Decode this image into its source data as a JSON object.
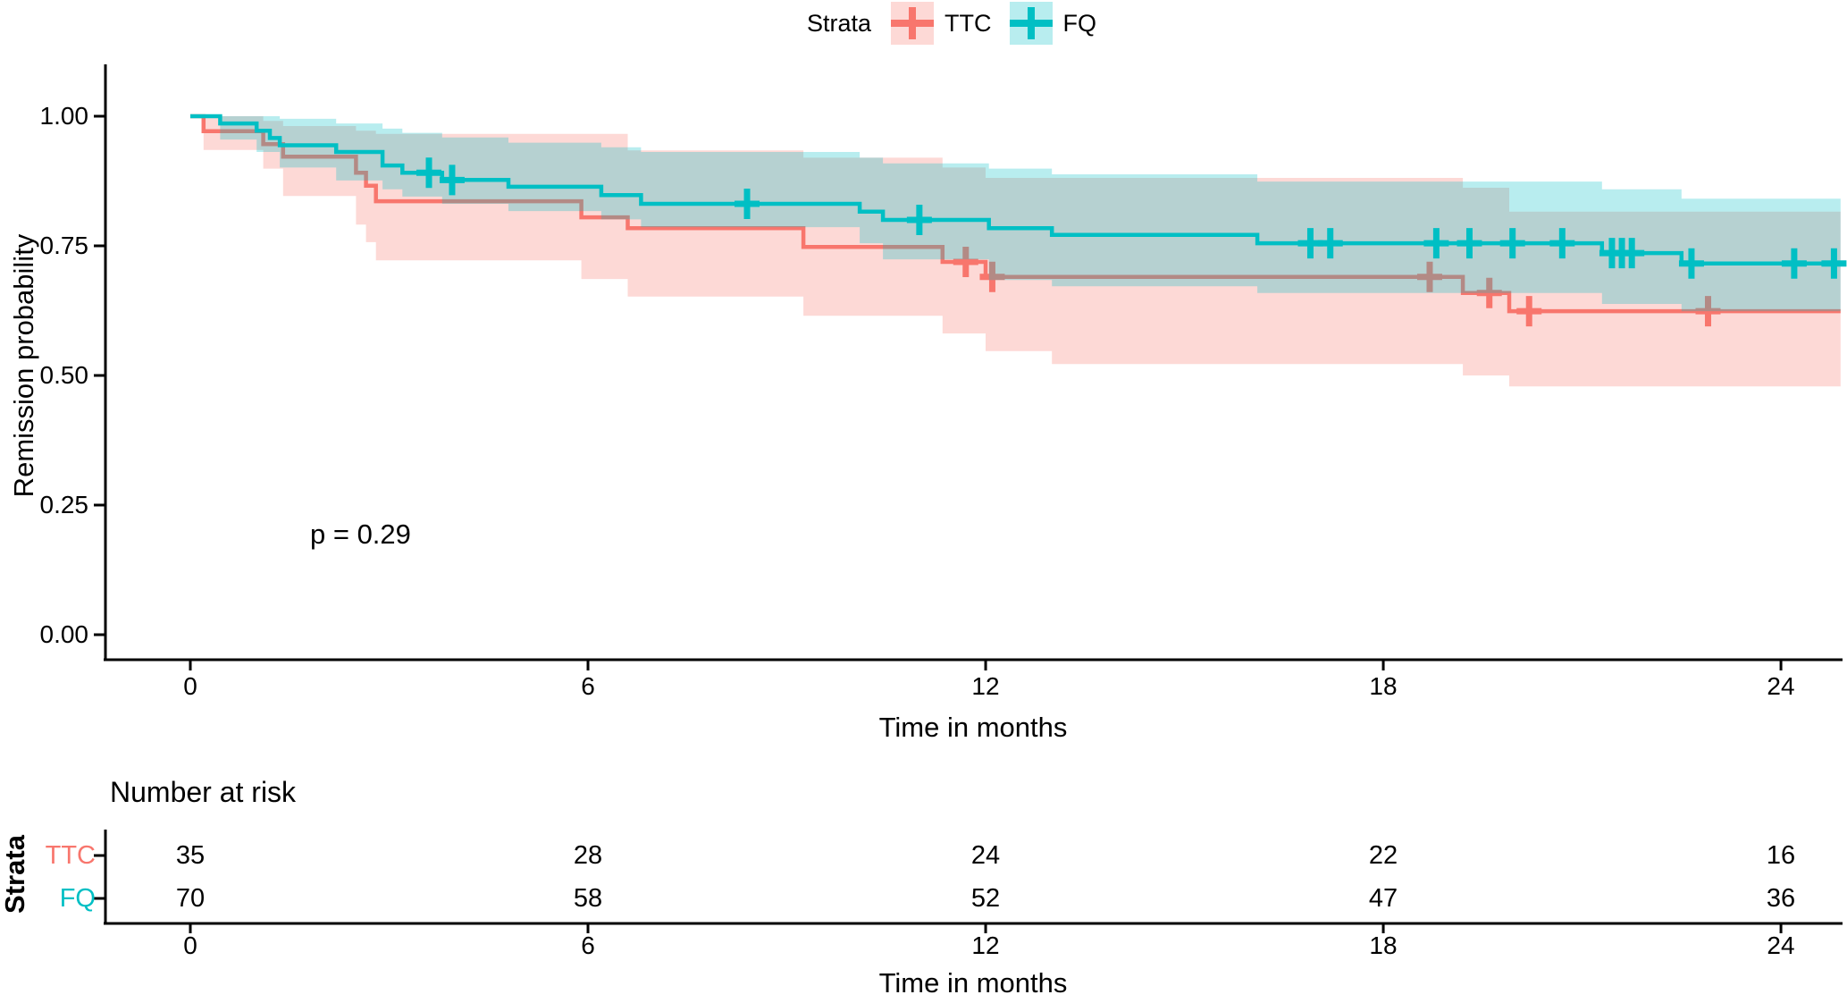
{
  "colors": {
    "ttc": "#F8766D",
    "fq": "#00BFC4",
    "ttc_band": "rgba(248,118,109,0.28)",
    "fq_band": "rgba(0,191,196,0.28)",
    "axis": "#000000",
    "text": "#000000"
  },
  "chart_data": {
    "type": "line",
    "subtype": "kaplan-meier-survival",
    "title": "",
    "xlabel": "Time in months",
    "ylabel": "Remission probability",
    "pvalue_annotation": "p = 0.29",
    "xlim": [
      0,
      24.9
    ],
    "ylim": [
      0,
      1.0
    ],
    "grid": false,
    "x_ticks": [
      0,
      6,
      12,
      18,
      24
    ],
    "x_tick_labels": [
      "0",
      "6",
      "12",
      "18",
      "24"
    ],
    "y_ticks": [
      1.0,
      0.75,
      0.5,
      0.25,
      0.0
    ],
    "y_tick_labels": [
      "1.00",
      "0.75",
      "0.50",
      "0.25",
      "0.00"
    ],
    "legend": {
      "title": "Strata",
      "position": "top",
      "items": [
        {
          "label": "TTC",
          "color": "#F8766D"
        },
        {
          "label": "FQ",
          "color": "#00BFC4"
        }
      ]
    },
    "series": [
      {
        "name": "TTC",
        "color": "#F8766D",
        "band_color": "rgba(248,118,109,0.28)",
        "steps": [
          [
            0,
            1.0
          ],
          [
            0.2,
            0.971
          ],
          [
            1.1,
            0.946
          ],
          [
            1.4,
            0.922
          ],
          [
            2.5,
            0.891
          ],
          [
            2.65,
            0.866
          ],
          [
            2.8,
            0.836
          ],
          [
            5.9,
            0.805
          ],
          [
            6.6,
            0.784
          ],
          [
            9.25,
            0.748
          ],
          [
            11.35,
            0.719
          ],
          [
            12.0,
            0.69
          ],
          [
            19.2,
            0.659
          ],
          [
            19.9,
            0.624
          ]
        ],
        "censors": [
          [
            11.7,
            0.719
          ],
          [
            12.1,
            0.69
          ],
          [
            18.7,
            0.69
          ],
          [
            19.6,
            0.659
          ],
          [
            20.2,
            0.624
          ],
          [
            22.9,
            0.624
          ]
        ],
        "band_upper": [
          [
            0.2,
            1.0
          ],
          [
            1.1,
            0.991
          ],
          [
            1.4,
            0.981
          ],
          [
            2.5,
            0.972
          ],
          [
            2.8,
            0.966
          ],
          [
            6.6,
            0.934
          ],
          [
            9.25,
            0.92
          ],
          [
            11.35,
            0.901
          ],
          [
            12.0,
            0.881
          ],
          [
            19.2,
            0.862
          ],
          [
            19.9,
            0.816
          ]
        ],
        "band_lower": [
          [
            0.2,
            0.935
          ],
          [
            1.1,
            0.899
          ],
          [
            1.4,
            0.846
          ],
          [
            2.5,
            0.791
          ],
          [
            2.65,
            0.757
          ],
          [
            2.8,
            0.722
          ],
          [
            5.9,
            0.686
          ],
          [
            6.6,
            0.652
          ],
          [
            9.25,
            0.615
          ],
          [
            11.35,
            0.581
          ],
          [
            12.0,
            0.547
          ],
          [
            13.0,
            0.522
          ],
          [
            19.2,
            0.5
          ],
          [
            19.9,
            0.479
          ]
        ]
      },
      {
        "name": "FQ",
        "color": "#00BFC4",
        "band_color": "rgba(0,191,196,0.28)",
        "steps": [
          [
            0,
            1.0
          ],
          [
            0.45,
            0.986
          ],
          [
            1.0,
            0.972
          ],
          [
            1.2,
            0.958
          ],
          [
            1.35,
            0.944
          ],
          [
            2.2,
            0.931
          ],
          [
            2.9,
            0.905
          ],
          [
            3.2,
            0.891
          ],
          [
            3.8,
            0.877
          ],
          [
            4.8,
            0.864
          ],
          [
            6.2,
            0.848
          ],
          [
            6.8,
            0.831
          ],
          [
            10.1,
            0.816
          ],
          [
            10.45,
            0.8
          ],
          [
            12.05,
            0.784
          ],
          [
            13.0,
            0.771
          ],
          [
            16.1,
            0.755
          ],
          [
            21.3,
            0.736
          ],
          [
            22.5,
            0.716
          ]
        ],
        "censors": [
          [
            3.6,
            0.891
          ],
          [
            3.95,
            0.877
          ],
          [
            8.4,
            0.831
          ],
          [
            11.0,
            0.8
          ],
          [
            16.9,
            0.755
          ],
          [
            17.2,
            0.755
          ],
          [
            18.8,
            0.755
          ],
          [
            19.3,
            0.755
          ],
          [
            19.95,
            0.755
          ],
          [
            20.7,
            0.755
          ],
          [
            21.45,
            0.736
          ],
          [
            21.6,
            0.736
          ],
          [
            21.75,
            0.736
          ],
          [
            22.65,
            0.716
          ],
          [
            24.2,
            0.716
          ],
          [
            24.8,
            0.716
          ]
        ],
        "band_upper": [
          [
            0.45,
            1.0
          ],
          [
            1.35,
            0.995
          ],
          [
            2.2,
            0.986
          ],
          [
            2.9,
            0.976
          ],
          [
            3.2,
            0.968
          ],
          [
            3.8,
            0.959
          ],
          [
            4.8,
            0.949
          ],
          [
            6.2,
            0.94
          ],
          [
            6.8,
            0.931
          ],
          [
            10.1,
            0.92
          ],
          [
            10.45,
            0.909
          ],
          [
            12.05,
            0.899
          ],
          [
            13.0,
            0.888
          ],
          [
            16.1,
            0.874
          ],
          [
            21.3,
            0.859
          ],
          [
            22.5,
            0.841
          ]
        ],
        "band_lower": [
          [
            0.45,
            0.955
          ],
          [
            1.0,
            0.931
          ],
          [
            1.35,
            0.901
          ],
          [
            2.2,
            0.876
          ],
          [
            2.9,
            0.859
          ],
          [
            3.2,
            0.845
          ],
          [
            3.8,
            0.831
          ],
          [
            4.8,
            0.817
          ],
          [
            6.2,
            0.801
          ],
          [
            6.8,
            0.786
          ],
          [
            10.1,
            0.755
          ],
          [
            10.45,
            0.724
          ],
          [
            12.05,
            0.684
          ],
          [
            13.0,
            0.672
          ],
          [
            16.1,
            0.659
          ],
          [
            21.3,
            0.638
          ],
          [
            22.5,
            0.624
          ]
        ]
      }
    ],
    "risk_table": {
      "title": "Number at risk",
      "strata_axis_label": "Strata",
      "xlabel": "Time in months",
      "ticks": [
        0,
        6,
        12,
        18,
        24
      ],
      "rows": [
        {
          "label": "TTC",
          "color": "#F8766D",
          "values": [
            35,
            28,
            24,
            22,
            16
          ]
        },
        {
          "label": "FQ",
          "color": "#00BFC4",
          "values": [
            70,
            58,
            52,
            47,
            36
          ]
        }
      ]
    }
  }
}
